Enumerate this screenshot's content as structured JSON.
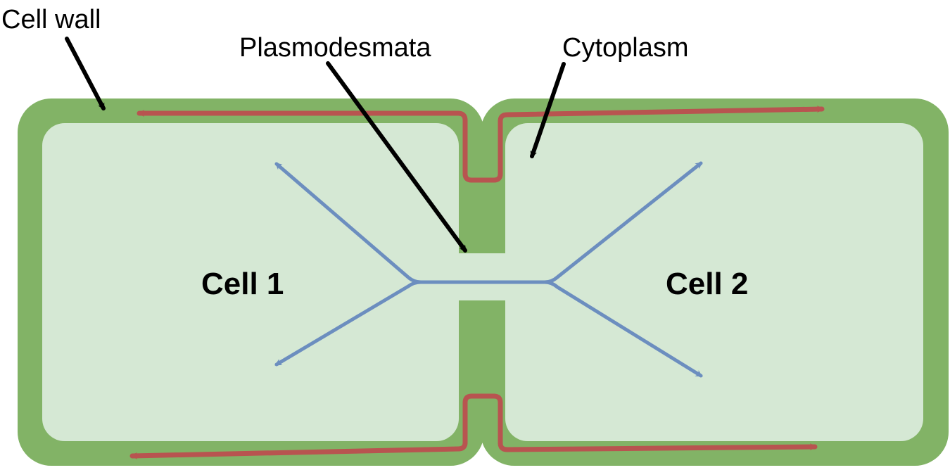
{
  "labels": {
    "cell_wall": "Cell wall",
    "plasmodesmata": "Plasmodesmata",
    "cytoplasm": "Cytoplasm",
    "cell1": "Cell 1",
    "cell2": "Cell 2"
  },
  "colors": {
    "cell_wall": "#82b366",
    "cytoplasm": "#d5e8d4",
    "apoplast_path": "#b85450",
    "symplast_path": "#6c8ebf",
    "callout_arrow": "#000000"
  }
}
